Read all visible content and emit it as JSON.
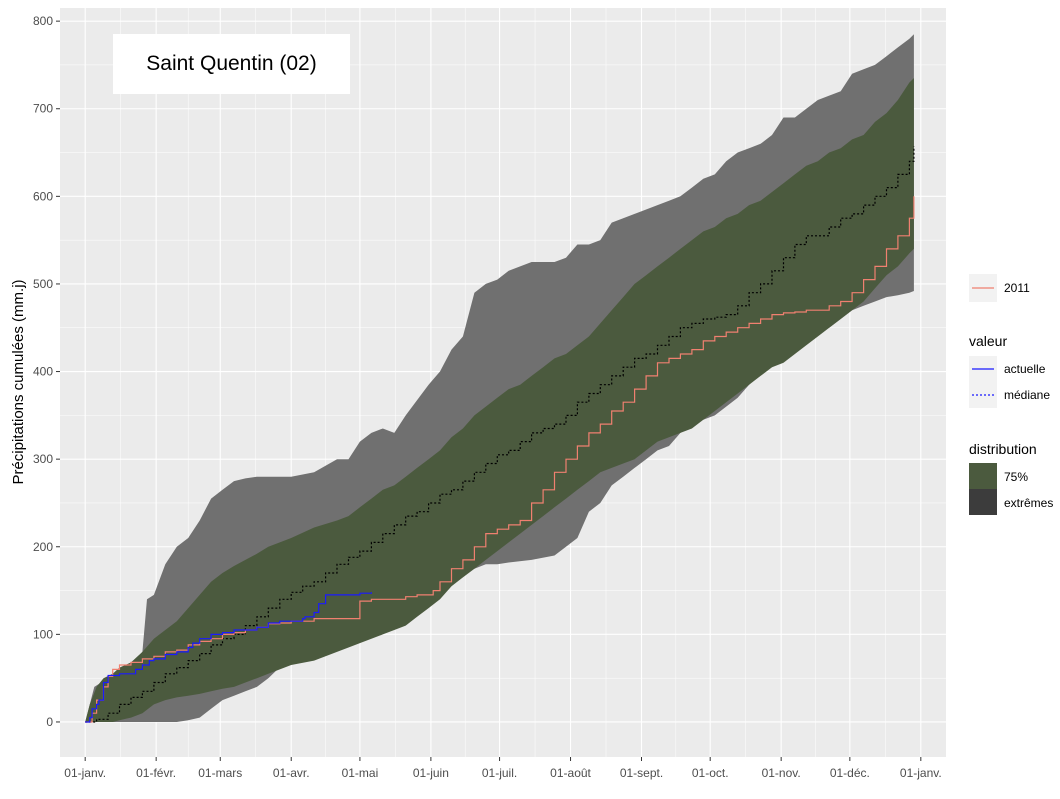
{
  "chart_data": {
    "type": "area",
    "title": "Saint Quentin (02)",
    "xlabel": "",
    "ylabel": "Précipitations cumulées (mm.j)",
    "ylim": [
      -40,
      815
    ],
    "xlim": [
      -11,
      376
    ],
    "y_ticks": [
      0,
      100,
      200,
      300,
      400,
      500,
      600,
      700,
      800
    ],
    "x_ticks": [
      {
        "day": 0,
        "label": "01-janv."
      },
      {
        "day": 31,
        "label": "01-févr."
      },
      {
        "day": 59,
        "label": "01-mars"
      },
      {
        "day": 90,
        "label": "01-avr."
      },
      {
        "day": 120,
        "label": "01-mai"
      },
      {
        "day": 151,
        "label": "01-juin"
      },
      {
        "day": 181,
        "label": "01-juil."
      },
      {
        "day": 212,
        "label": "01-août"
      },
      {
        "day": 243,
        "label": "01-sept."
      },
      {
        "day": 273,
        "label": "01-oct."
      },
      {
        "day": 304,
        "label": "01-nov."
      },
      {
        "day": 334,
        "label": "01-déc."
      },
      {
        "day": 365,
        "label": "01-janv."
      }
    ],
    "grid": true,
    "legend_position": "right",
    "colors": {
      "panel": "#ebebeb",
      "grid": "#ffffff",
      "extremes": "#707070",
      "band75": "#4b5a3e",
      "actuelle": "#1a1aff",
      "mediane": "#000000",
      "year2011": "#f08070"
    },
    "series": {
      "extremes": {
        "x": [
          0,
          2,
          4,
          7,
          10,
          15,
          20,
          25,
          27,
          30,
          35,
          40,
          45,
          50,
          55,
          60,
          65,
          70,
          75,
          80,
          90,
          100,
          110,
          115,
          120,
          125,
          130,
          135,
          140,
          150,
          155,
          160,
          165,
          170,
          175,
          180,
          185,
          195,
          205,
          210,
          215,
          220,
          225,
          230,
          235,
          240,
          245,
          250,
          255,
          260,
          265,
          270,
          275,
          280,
          285,
          290,
          295,
          300,
          305,
          310,
          315,
          320,
          325,
          330,
          335,
          340,
          345,
          350,
          355,
          360,
          362
        ],
        "upper": [
          0,
          20,
          40,
          45,
          50,
          60,
          65,
          80,
          140,
          145,
          180,
          200,
          210,
          230,
          255,
          265,
          275,
          278,
          280,
          280,
          280,
          285,
          300,
          300,
          320,
          330,
          335,
          330,
          350,
          385,
          400,
          425,
          440,
          490,
          500,
          505,
          515,
          525,
          525,
          530,
          545,
          545,
          550,
          570,
          575,
          580,
          585,
          590,
          595,
          600,
          610,
          620,
          625,
          640,
          650,
          655,
          660,
          670,
          690,
          690,
          700,
          710,
          715,
          720,
          740,
          745,
          750,
          760,
          770,
          780,
          785
        ],
        "lower": [
          0,
          0,
          0,
          0,
          0,
          0,
          0,
          0,
          0,
          0,
          0,
          0,
          2,
          5,
          15,
          25,
          30,
          35,
          40,
          50,
          75,
          85,
          90,
          95,
          100,
          110,
          120,
          125,
          135,
          140,
          150,
          160,
          170,
          175,
          180,
          180,
          182,
          185,
          190,
          200,
          210,
          240,
          250,
          270,
          280,
          290,
          300,
          310,
          315,
          330,
          340,
          345,
          350,
          360,
          370,
          385,
          400,
          410,
          420,
          430,
          440,
          445,
          450,
          460,
          470,
          475,
          480,
          485,
          487,
          490,
          492
        ]
      },
      "band_75": {
        "x": [
          0,
          2,
          5,
          8,
          12,
          15,
          20,
          25,
          30,
          35,
          40,
          45,
          50,
          55,
          60,
          65,
          70,
          75,
          80,
          85,
          90,
          100,
          110,
          115,
          120,
          125,
          130,
          135,
          140,
          145,
          150,
          155,
          160,
          165,
          170,
          175,
          180,
          185,
          190,
          195,
          200,
          205,
          210,
          215,
          220,
          225,
          230,
          235,
          240,
          245,
          250,
          255,
          260,
          265,
          270,
          275,
          280,
          285,
          290,
          295,
          300,
          305,
          310,
          315,
          320,
          325,
          330,
          335,
          340,
          345,
          350,
          355,
          360,
          362
        ],
        "upper": [
          0,
          20,
          40,
          50,
          55,
          62,
          68,
          80,
          95,
          105,
          115,
          130,
          145,
          160,
          170,
          178,
          185,
          192,
          200,
          205,
          210,
          222,
          230,
          235,
          245,
          255,
          265,
          270,
          280,
          290,
          300,
          310,
          325,
          335,
          350,
          360,
          370,
          380,
          385,
          395,
          405,
          415,
          420,
          430,
          440,
          455,
          470,
          485,
          500,
          510,
          520,
          530,
          540,
          550,
          560,
          565,
          575,
          580,
          590,
          595,
          605,
          615,
          625,
          635,
          640,
          650,
          655,
          665,
          670,
          685,
          695,
          710,
          730,
          735
        ],
        "lower": [
          0,
          0,
          0,
          0,
          0,
          2,
          5,
          10,
          20,
          25,
          28,
          30,
          32,
          35,
          38,
          40,
          45,
          50,
          55,
          60,
          65,
          70,
          80,
          85,
          90,
          95,
          100,
          105,
          110,
          120,
          130,
          140,
          155,
          165,
          175,
          185,
          195,
          205,
          215,
          225,
          235,
          245,
          255,
          265,
          275,
          285,
          290,
          295,
          300,
          310,
          320,
          325,
          330,
          335,
          345,
          355,
          365,
          375,
          385,
          395,
          405,
          410,
          420,
          430,
          440,
          450,
          460,
          470,
          480,
          495,
          510,
          520,
          535,
          540
        ]
      },
      "mediane": {
        "name": "médiane",
        "x": [
          0,
          5,
          10,
          15,
          20,
          25,
          30,
          35,
          40,
          45,
          50,
          55,
          60,
          65,
          70,
          75,
          80,
          85,
          90,
          95,
          100,
          105,
          110,
          115,
          120,
          125,
          130,
          135,
          140,
          145,
          150,
          155,
          160,
          165,
          170,
          175,
          180,
          185,
          190,
          195,
          200,
          205,
          210,
          215,
          220,
          225,
          230,
          235,
          240,
          245,
          250,
          255,
          260,
          265,
          270,
          275,
          280,
          285,
          290,
          295,
          300,
          305,
          310,
          315,
          320,
          325,
          330,
          335,
          340,
          345,
          350,
          355,
          360,
          362
        ],
        "values": [
          0,
          3,
          10,
          20,
          28,
          35,
          45,
          55,
          62,
          70,
          78,
          88,
          95,
          100,
          110,
          120,
          130,
          140,
          148,
          155,
          160,
          170,
          180,
          188,
          195,
          205,
          215,
          225,
          235,
          240,
          250,
          260,
          265,
          275,
          285,
          295,
          305,
          310,
          320,
          330,
          335,
          340,
          350,
          365,
          375,
          385,
          395,
          405,
          415,
          420,
          430,
          440,
          450,
          455,
          460,
          462,
          465,
          475,
          490,
          500,
          515,
          530,
          545,
          555,
          555,
          565,
          575,
          580,
          590,
          600,
          610,
          625,
          640,
          657
        ]
      },
      "actuelle": {
        "name": "actuelle",
        "x": [
          0,
          2,
          3,
          5,
          6,
          7,
          8,
          10,
          15,
          20,
          22,
          25,
          28,
          30,
          35,
          40,
          45,
          47,
          50,
          55,
          60,
          65,
          70,
          75,
          80,
          85,
          90,
          95,
          96,
          100,
          102,
          105,
          110,
          115,
          120,
          125
        ],
        "values": [
          0,
          5,
          15,
          20,
          25,
          25,
          45,
          53,
          55,
          55,
          60,
          65,
          70,
          72,
          77,
          80,
          85,
          90,
          95,
          100,
          102,
          105,
          105,
          108,
          113,
          115,
          115,
          118,
          120,
          125,
          135,
          145,
          145,
          145,
          147,
          148
        ]
      },
      "year_2011": {
        "name": "2011",
        "x": [
          0,
          3,
          5,
          8,
          10,
          12,
          15,
          20,
          25,
          30,
          35,
          40,
          45,
          50,
          55,
          60,
          65,
          70,
          75,
          80,
          85,
          90,
          95,
          100,
          105,
          110,
          115,
          120,
          125,
          130,
          135,
          140,
          145,
          150,
          152,
          155,
          160,
          165,
          170,
          175,
          180,
          185,
          190,
          195,
          200,
          205,
          210,
          215,
          220,
          225,
          230,
          235,
          240,
          245,
          250,
          255,
          260,
          265,
          270,
          275,
          280,
          285,
          290,
          295,
          300,
          305,
          310,
          315,
          320,
          325,
          330,
          335,
          340,
          345,
          350,
          355,
          360,
          362
        ],
        "values": [
          0,
          10,
          25,
          40,
          52,
          60,
          65,
          68,
          72,
          75,
          80,
          82,
          88,
          92,
          95,
          100,
          102,
          105,
          108,
          112,
          113,
          115,
          115,
          118,
          118,
          118,
          118,
          138,
          140,
          140,
          140,
          143,
          145,
          145,
          150,
          160,
          175,
          185,
          200,
          215,
          220,
          225,
          230,
          250,
          265,
          285,
          300,
          315,
          330,
          340,
          355,
          365,
          380,
          395,
          410,
          415,
          420,
          425,
          435,
          440,
          445,
          450,
          455,
          460,
          465,
          467,
          468,
          470,
          470,
          475,
          480,
          490,
          505,
          520,
          540,
          555,
          575,
          600
        ]
      }
    },
    "legend": {
      "year_label": "2011",
      "valeur_title": "valeur",
      "valeur_items": [
        "actuelle",
        "médiane"
      ],
      "distribution_title": "distribution",
      "distribution_items": [
        "75%",
        "extrêmes"
      ]
    }
  }
}
